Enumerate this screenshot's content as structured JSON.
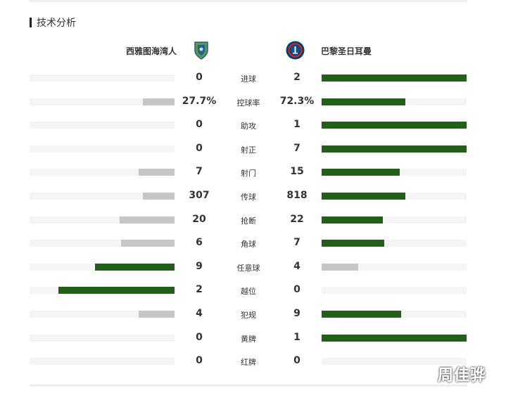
{
  "section_title": "技术分析",
  "teams": {
    "home": {
      "name": "西雅图海湾人",
      "logo_icon": "seattle-sounders-crest-icon"
    },
    "away": {
      "name": "巴黎圣日耳曼",
      "logo_icon": "psg-crest-icon"
    }
  },
  "colors": {
    "winner_bar": "#245e1b",
    "loser_bar": "#c6c6c6",
    "track": "#f5f5f5"
  },
  "stats": [
    {
      "label": "进球",
      "home": "0",
      "away": "2",
      "home_fraction": 0,
      "away_fraction": 1
    },
    {
      "label": "控球率",
      "home": "27.7%",
      "away": "72.3%",
      "home_fraction": 0.22,
      "away_fraction": 0.58
    },
    {
      "label": "助攻",
      "home": "0",
      "away": "1",
      "home_fraction": 0,
      "away_fraction": 1
    },
    {
      "label": "射正",
      "home": "0",
      "away": "7",
      "home_fraction": 0,
      "away_fraction": 1
    },
    {
      "label": "射门",
      "home": "7",
      "away": "15",
      "home_fraction": 0.25,
      "away_fraction": 0.54
    },
    {
      "label": "传球",
      "home": "307",
      "away": "818",
      "home_fraction": 0.22,
      "away_fraction": 0.58
    },
    {
      "label": "抢断",
      "home": "20",
      "away": "22",
      "home_fraction": 0.38,
      "away_fraction": 0.42
    },
    {
      "label": "角球",
      "home": "6",
      "away": "7",
      "home_fraction": 0.37,
      "away_fraction": 0.43
    },
    {
      "label": "任意球",
      "home": "9",
      "away": "4",
      "home_fraction": 0.55,
      "away_fraction": 0.25
    },
    {
      "label": "越位",
      "home": "2",
      "away": "0",
      "home_fraction": 0.8,
      "away_fraction": 0
    },
    {
      "label": "犯规",
      "home": "4",
      "away": "9",
      "home_fraction": 0.25,
      "away_fraction": 0.55
    },
    {
      "label": "黄牌",
      "home": "0",
      "away": "1",
      "home_fraction": 0,
      "away_fraction": 1
    },
    {
      "label": "红牌",
      "home": "0",
      "away": "0",
      "home_fraction": 0,
      "away_fraction": 0
    }
  ],
  "watermark": "周佳骅"
}
